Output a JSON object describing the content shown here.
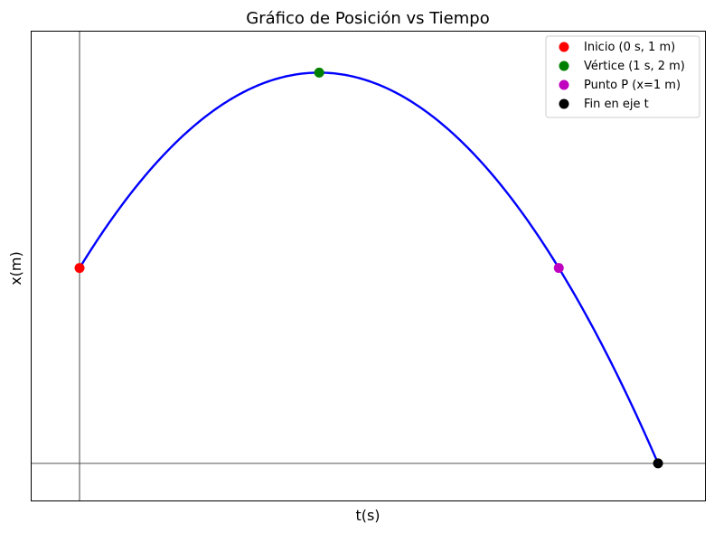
{
  "chart_data": {
    "type": "line",
    "title": "Gráfico de Posición vs Tiempo",
    "xlabel": "t(s)",
    "ylabel": "x(m)",
    "xlim": [
      -0.2,
      2.61
    ],
    "ylim": [
      -0.19,
      2.21
    ],
    "x_ticks_shown": false,
    "y_ticks_shown": false,
    "grid": false,
    "axis_lines": {
      "vertical_at_t": 0,
      "horizontal_at_x": 0,
      "color": "#555555"
    },
    "curve": {
      "color": "#0000ff",
      "equation_coefficients": {
        "a": -1,
        "b": 2,
        "c": 1
      },
      "t_range": [
        0,
        2.4142
      ]
    },
    "points": [
      {
        "label": "Inicio (0 s, 1 m)",
        "t": 0,
        "x": 1,
        "color": "#ff0000"
      },
      {
        "label": "Vértice (1 s, 2 m)",
        "t": 1,
        "x": 2,
        "color": "#008000"
      },
      {
        "label": "Punto P (x=1 m)",
        "t": 2,
        "x": 1,
        "color": "#bf00bf"
      },
      {
        "label": "Fin en eje t",
        "t": 2.4142,
        "x": 0,
        "color": "#000000"
      }
    ],
    "legend_position": "top-right"
  }
}
